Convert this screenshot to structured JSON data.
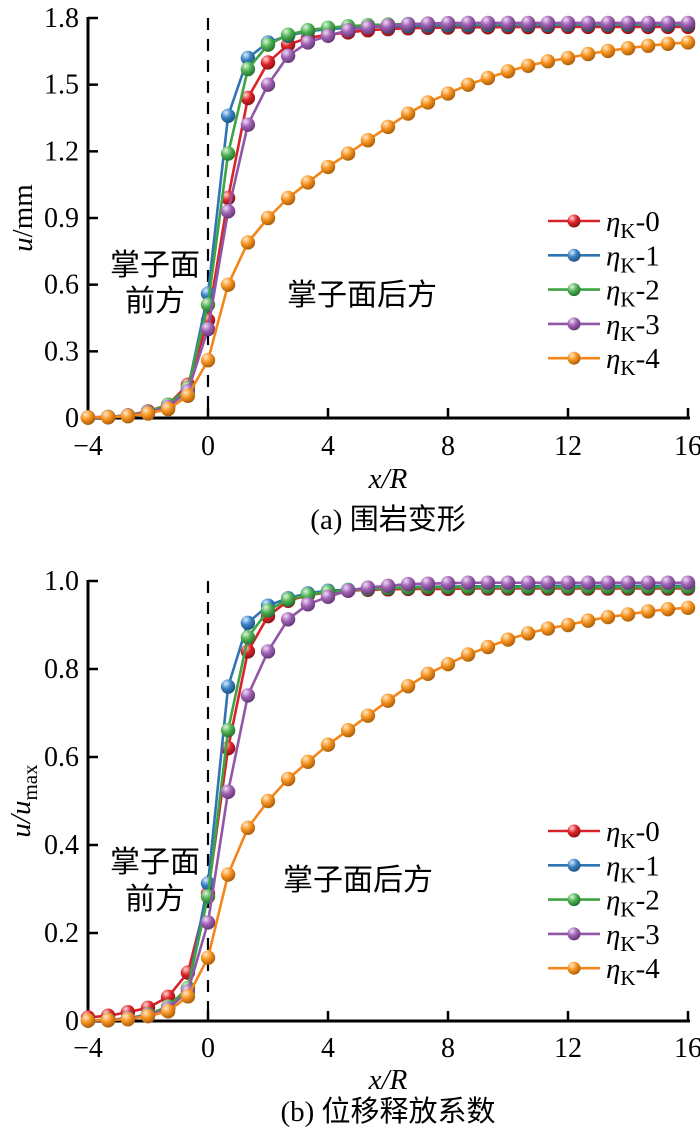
{
  "figure": {
    "background": "#ffffff"
  },
  "chart_data": [
    {
      "id": "a",
      "type": "line",
      "caption": "(a) 围岩变形",
      "xlabel": "x/R",
      "ylabel": "u/mm",
      "ylabel_parts": [
        {
          "text": "u",
          "italic": true
        },
        {
          "text": "/mm"
        }
      ],
      "xlim": [
        -4,
        16
      ],
      "ylim": [
        0,
        1.8
      ],
      "xticks": [
        {
          "v": -4,
          "t": "−4"
        },
        {
          "v": 0,
          "t": "0"
        },
        {
          "v": 4,
          "t": "4"
        },
        {
          "v": 8,
          "t": "8"
        },
        {
          "v": 12,
          "t": "12"
        },
        {
          "v": 16,
          "t": "16"
        }
      ],
      "yticks": [
        {
          "v": 0,
          "t": "0"
        },
        {
          "v": 0.3,
          "t": "0.3"
        },
        {
          "v": 0.6,
          "t": "0.6"
        },
        {
          "v": 0.9,
          "t": "0.9"
        },
        {
          "v": 1.2,
          "t": "1.2"
        },
        {
          "v": 1.5,
          "t": "1.5"
        },
        {
          "v": 1.8,
          "t": "1.8"
        }
      ],
      "grid": false,
      "legend_position": "right-middle",
      "face_line_x": 0,
      "annotations": [
        {
          "name": "front-of-face",
          "lines": [
            "掌子面",
            "前方"
          ]
        },
        {
          "name": "behind-face",
          "lines": [
            "掌子面后方"
          ]
        }
      ],
      "x": [
        -4,
        -3.33,
        -2.67,
        -2,
        -1.33,
        -0.67,
        0,
        0.67,
        1.33,
        2,
        2.67,
        3.33,
        4,
        4.67,
        5.33,
        6,
        6.67,
        7.33,
        8,
        8.67,
        9.33,
        10,
        10.67,
        11.33,
        12,
        12.67,
        13.33,
        14,
        14.67,
        15.33,
        16
      ],
      "series": [
        {
          "name": "ηK-0",
          "label": {
            "sym": "η",
            "sub": "K",
            "suffix": "-0"
          },
          "color": "#d8232a",
          "sphere": [
            "#ffd9d9",
            "#e02329",
            "#7e1014"
          ],
          "values": [
            0.003,
            0.005,
            0.012,
            0.03,
            0.06,
            0.15,
            0.44,
            0.99,
            1.44,
            1.6,
            1.68,
            1.71,
            1.725,
            1.735,
            1.745,
            1.75,
            1.754,
            1.756,
            1.757,
            1.758,
            1.758,
            1.759,
            1.759,
            1.76,
            1.76,
            1.76,
            1.76,
            1.76,
            1.76,
            1.76,
            1.76
          ]
        },
        {
          "name": "ηK-1",
          "label": {
            "sym": "η",
            "sub": "K",
            "suffix": "-1"
          },
          "color": "#2f74b3",
          "sphere": [
            "#d9ecff",
            "#3b82c4",
            "#174a75"
          ],
          "values": [
            0.002,
            0.004,
            0.01,
            0.025,
            0.055,
            0.13,
            0.56,
            1.36,
            1.62,
            1.69,
            1.72,
            1.74,
            1.75,
            1.755,
            1.759,
            1.762,
            1.764,
            1.766,
            1.767,
            1.768,
            1.768,
            1.769,
            1.769,
            1.769,
            1.77,
            1.77,
            1.77,
            1.77,
            1.77,
            1.77,
            1.77
          ]
        },
        {
          "name": "ηK-2",
          "label": {
            "sym": "η",
            "sub": "K",
            "suffix": "-2"
          },
          "color": "#3fa344",
          "sphere": [
            "#dff5dc",
            "#4fb253",
            "#1d6626"
          ],
          "values": [
            0.002,
            0.005,
            0.011,
            0.027,
            0.06,
            0.135,
            0.51,
            1.19,
            1.57,
            1.68,
            1.725,
            1.745,
            1.756,
            1.763,
            1.768,
            1.771,
            1.773,
            1.774,
            1.775,
            1.775,
            1.775,
            1.775,
            1.775,
            1.775,
            1.775,
            1.775,
            1.775,
            1.775,
            1.775,
            1.775,
            1.775
          ]
        },
        {
          "name": "ηK-3",
          "label": {
            "sym": "η",
            "sub": "K",
            "suffix": "-3"
          },
          "color": "#9156a5",
          "sphere": [
            "#efdcf6",
            "#a162b4",
            "#59306b"
          ],
          "values": [
            0.002,
            0.004,
            0.01,
            0.024,
            0.05,
            0.12,
            0.4,
            0.93,
            1.32,
            1.5,
            1.63,
            1.69,
            1.72,
            1.745,
            1.758,
            1.766,
            1.772,
            1.775,
            1.777,
            1.778,
            1.778,
            1.778,
            1.778,
            1.778,
            1.778,
            1.778,
            1.778,
            1.778,
            1.778,
            1.778,
            1.778
          ]
        },
        {
          "name": "ηK-4",
          "label": {
            "sym": "η",
            "sub": "K",
            "suffix": "-4"
          },
          "color": "#f58518",
          "sphere": [
            "#ffe9c9",
            "#f8941f",
            "#9c5406"
          ],
          "values": [
            0.002,
            0.003,
            0.008,
            0.02,
            0.04,
            0.1,
            0.26,
            0.6,
            0.79,
            0.9,
            0.99,
            1.06,
            1.13,
            1.19,
            1.25,
            1.31,
            1.37,
            1.42,
            1.46,
            1.5,
            1.53,
            1.56,
            1.585,
            1.605,
            1.62,
            1.638,
            1.652,
            1.664,
            1.675,
            1.684,
            1.69
          ]
        }
      ]
    },
    {
      "id": "b",
      "type": "line",
      "caption": "(b) 位移释放系数",
      "xlabel": "x/R",
      "ylabel": "u/umax",
      "ylabel_parts": [
        {
          "text": "u/u",
          "italic": true
        },
        {
          "text": "max",
          "sub": true
        }
      ],
      "xlim": [
        -4,
        16
      ],
      "ylim": [
        0,
        1.0
      ],
      "xticks": [
        {
          "v": -4,
          "t": "−4"
        },
        {
          "v": 0,
          "t": "0"
        },
        {
          "v": 4,
          "t": "4"
        },
        {
          "v": 8,
          "t": "8"
        },
        {
          "v": 12,
          "t": "12"
        },
        {
          "v": 16,
          "t": "16"
        }
      ],
      "yticks": [
        {
          "v": 0,
          "t": "0"
        },
        {
          "v": 0.2,
          "t": "0.2"
        },
        {
          "v": 0.4,
          "t": "0.4"
        },
        {
          "v": 0.6,
          "t": "0.6"
        },
        {
          "v": 0.8,
          "t": "0.8"
        },
        {
          "v": 1.0,
          "t": "1.0"
        }
      ],
      "grid": false,
      "legend_position": "right-middle",
      "face_line_x": 0,
      "annotations": [
        {
          "name": "front-of-face",
          "lines": [
            "掌子面",
            "前方"
          ]
        },
        {
          "name": "behind-face",
          "lines": [
            "掌子面后方"
          ]
        }
      ],
      "x": [
        -4,
        -3.33,
        -2.67,
        -2,
        -1.33,
        -0.67,
        0,
        0.67,
        1.33,
        2,
        2.67,
        3.33,
        4,
        4.67,
        5.33,
        6,
        6.67,
        7.33,
        8,
        8.67,
        9.33,
        10,
        10.67,
        11.33,
        12,
        12.67,
        13.33,
        14,
        14.67,
        15.33,
        16
      ],
      "series": [
        {
          "name": "ηK-0",
          "label": {
            "sym": "η",
            "sub": "K",
            "suffix": "-0"
          },
          "color": "#d8232a",
          "sphere": [
            "#ffd9d9",
            "#e02329",
            "#7e1014"
          ],
          "values": [
            0.008,
            0.012,
            0.02,
            0.03,
            0.055,
            0.11,
            0.29,
            0.62,
            0.84,
            0.92,
            0.955,
            0.968,
            0.974,
            0.978,
            0.98,
            0.981,
            0.982,
            0.982,
            0.982,
            0.983,
            0.983,
            0.983,
            0.983,
            0.983,
            0.983,
            0.983,
            0.983,
            0.983,
            0.983,
            0.983,
            0.983
          ]
        },
        {
          "name": "ηK-1",
          "label": {
            "sym": "η",
            "sub": "K",
            "suffix": "-1"
          },
          "color": "#2f74b3",
          "sphere": [
            "#d9ecff",
            "#3b82c4",
            "#174a75"
          ],
          "values": [
            0.001,
            0.002,
            0.006,
            0.014,
            0.031,
            0.073,
            0.313,
            0.76,
            0.905,
            0.944,
            0.961,
            0.972,
            0.978,
            0.98,
            0.983,
            0.984,
            0.986,
            0.987,
            0.987,
            0.988,
            0.988,
            0.988,
            0.988,
            0.989,
            0.989,
            0.989,
            0.989,
            0.989,
            0.989,
            0.989,
            0.989
          ]
        },
        {
          "name": "ηK-2",
          "label": {
            "sym": "η",
            "sub": "K",
            "suffix": "-2"
          },
          "color": "#3fa344",
          "sphere": [
            "#dff5dc",
            "#4fb253",
            "#1d6626"
          ],
          "values": [
            0.001,
            0.003,
            0.006,
            0.015,
            0.033,
            0.075,
            0.283,
            0.661,
            0.872,
            0.933,
            0.958,
            0.969,
            0.975,
            0.979,
            0.982,
            0.984,
            0.985,
            0.986,
            0.986,
            0.986,
            0.986,
            0.986,
            0.986,
            0.986,
            0.986,
            0.986,
            0.986,
            0.986,
            0.986,
            0.986,
            0.986
          ]
        },
        {
          "name": "ηK-3",
          "label": {
            "sym": "η",
            "sub": "K",
            "suffix": "-3"
          },
          "color": "#9156a5",
          "sphere": [
            "#efdcf6",
            "#a162b4",
            "#59306b"
          ],
          "values": [
            0.001,
            0.002,
            0.006,
            0.013,
            0.028,
            0.067,
            0.224,
            0.521,
            0.74,
            0.84,
            0.913,
            0.947,
            0.964,
            0.978,
            0.985,
            0.989,
            0.993,
            0.994,
            0.995,
            0.996,
            0.996,
            0.996,
            0.996,
            0.996,
            0.996,
            0.996,
            0.996,
            0.996,
            0.996,
            0.996,
            0.996
          ]
        },
        {
          "name": "ηK-4",
          "label": {
            "sym": "η",
            "sub": "K",
            "suffix": "-4"
          },
          "color": "#f58518",
          "sphere": [
            "#ffe9c9",
            "#f8941f",
            "#9c5406"
          ],
          "values": [
            0.001,
            0.002,
            0.004,
            0.011,
            0.022,
            0.056,
            0.144,
            0.333,
            0.439,
            0.5,
            0.55,
            0.589,
            0.628,
            0.661,
            0.694,
            0.728,
            0.761,
            0.789,
            0.811,
            0.833,
            0.85,
            0.867,
            0.881,
            0.892,
            0.9,
            0.91,
            0.918,
            0.924,
            0.931,
            0.936,
            0.939
          ]
        }
      ]
    }
  ]
}
